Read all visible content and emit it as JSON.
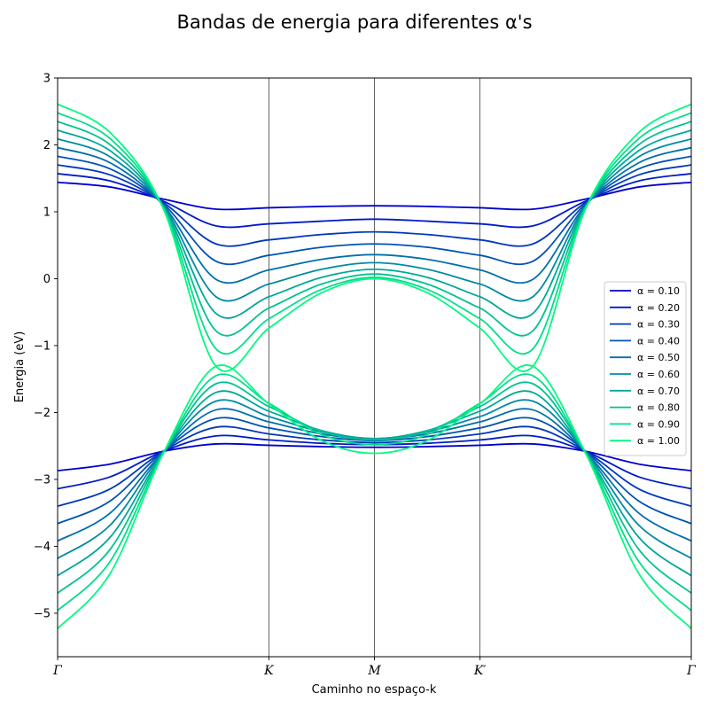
{
  "chart_data": {
    "type": "line",
    "title": "Bandas de energia para diferentes α's",
    "xlabel": "Caminho no espaço-k",
    "ylabel": "Energia (eV)",
    "ylim": [
      -5.65,
      3.0
    ],
    "yticks": [
      {
        "value": 3,
        "label": "3"
      },
      {
        "value": 2,
        "label": "2"
      },
      {
        "value": 1,
        "label": "1"
      },
      {
        "value": 0,
        "label": "0"
      },
      {
        "value": -1,
        "label": "−1"
      },
      {
        "value": -2,
        "label": "−2"
      },
      {
        "value": -3,
        "label": "−3"
      },
      {
        "value": -4,
        "label": "−4"
      },
      {
        "value": -5,
        "label": "−5"
      }
    ],
    "xticks": [
      "Γ",
      "K",
      "M",
      "K′",
      "Γ"
    ],
    "x": [
      0,
      0.5,
      1,
      1.5,
      2,
      2.5,
      3,
      3.5,
      4,
      4.5,
      5,
      5.5,
      6
    ],
    "vlines": true,
    "legend_position": "center-right",
    "color_start": "#0000cd",
    "color_end": "#00fa80",
    "series": [
      {
        "name": "α = 0.10",
        "upper": [
          1.44,
          1.37,
          1.19,
          1.04,
          1.06,
          1.08,
          1.09,
          1.08,
          1.06,
          1.04,
          1.19,
          1.37,
          1.44
        ],
        "lower": [
          -2.87,
          -2.77,
          -2.58,
          -2.47,
          -2.49,
          -2.51,
          -2.52,
          -2.51,
          -2.49,
          -2.47,
          -2.58,
          -2.77,
          -2.87
        ]
      },
      {
        "name": "α = 0.20",
        "upper": [
          1.57,
          1.46,
          1.16,
          0.79,
          0.82,
          0.86,
          0.89,
          0.86,
          0.82,
          0.79,
          1.16,
          1.46,
          1.57
        ],
        "lower": [
          -3.14,
          -2.96,
          -2.58,
          -2.35,
          -2.41,
          -2.46,
          -2.48,
          -2.46,
          -2.41,
          -2.35,
          -2.58,
          -2.96,
          -3.14
        ]
      },
      {
        "name": "α = 0.30",
        "upper": [
          1.7,
          1.55,
          1.14,
          0.52,
          0.58,
          0.66,
          0.7,
          0.66,
          0.58,
          0.52,
          1.14,
          1.55,
          1.7
        ],
        "lower": [
          -3.4,
          -3.14,
          -2.58,
          -2.22,
          -2.32,
          -2.41,
          -2.45,
          -2.41,
          -2.32,
          -2.22,
          -2.58,
          -3.14,
          -3.4
        ]
      },
      {
        "name": "α = 0.40",
        "upper": [
          1.83,
          1.64,
          1.12,
          0.26,
          0.35,
          0.47,
          0.52,
          0.47,
          0.35,
          0.26,
          1.12,
          1.64,
          1.83
        ],
        "lower": [
          -3.66,
          -3.32,
          -2.58,
          -2.09,
          -2.23,
          -2.36,
          -2.42,
          -2.36,
          -2.23,
          -2.09,
          -2.58,
          -3.32,
          -3.66
        ]
      },
      {
        "name": "α = 0.50",
        "upper": [
          1.96,
          1.73,
          1.1,
          -0.01,
          0.13,
          0.29,
          0.36,
          0.29,
          0.13,
          -0.01,
          1.1,
          1.73,
          1.96
        ],
        "lower": [
          -3.92,
          -3.5,
          -2.59,
          -1.96,
          -2.14,
          -2.32,
          -2.4,
          -2.32,
          -2.14,
          -1.96,
          -2.59,
          -3.5,
          -3.92
        ]
      },
      {
        "name": "α = 0.60",
        "upper": [
          2.09,
          1.82,
          1.09,
          -0.27,
          -0.08,
          0.14,
          0.24,
          0.14,
          -0.08,
          -0.27,
          1.09,
          1.82,
          2.09
        ],
        "lower": [
          -4.18,
          -3.68,
          -2.59,
          -1.83,
          -2.06,
          -2.29,
          -2.39,
          -2.29,
          -2.06,
          -1.83,
          -2.59,
          -3.68,
          -4.18
        ]
      },
      {
        "name": "α = 0.70",
        "upper": [
          2.22,
          1.91,
          1.08,
          -0.52,
          -0.27,
          0.02,
          0.14,
          0.02,
          -0.27,
          -0.52,
          1.08,
          1.91,
          2.22
        ],
        "lower": [
          -4.44,
          -3.86,
          -2.6,
          -1.7,
          -1.98,
          -2.27,
          -2.39,
          -2.27,
          -1.98,
          -1.7,
          -2.6,
          -3.86,
          -4.44
        ]
      },
      {
        "name": "α = 0.80",
        "upper": [
          2.35,
          2.0,
          1.07,
          -0.78,
          -0.44,
          -0.08,
          0.07,
          -0.08,
          -0.44,
          -0.78,
          1.07,
          2.0,
          2.35
        ],
        "lower": [
          -4.7,
          -4.04,
          -2.6,
          -1.57,
          -1.91,
          -2.28,
          -2.41,
          -2.28,
          -1.91,
          -1.57,
          -2.6,
          -4.04,
          -4.7
        ]
      },
      {
        "name": "α = 0.90",
        "upper": [
          2.48,
          2.09,
          1.06,
          -1.05,
          -0.6,
          -0.16,
          0.02,
          -0.16,
          -0.6,
          -1.05,
          1.06,
          2.09,
          2.48
        ],
        "lower": [
          -4.96,
          -4.22,
          -2.61,
          -1.45,
          -1.86,
          -2.33,
          -2.48,
          -2.33,
          -1.86,
          -1.45,
          -2.61,
          -4.22,
          -4.96
        ]
      },
      {
        "name": "α = 1.00",
        "upper": [
          2.61,
          2.18,
          1.05,
          -1.31,
          -0.74,
          -0.21,
          0.0,
          -0.21,
          -0.74,
          -1.31,
          1.05,
          2.18,
          2.61
        ],
        "lower": [
          -5.23,
          -4.4,
          -2.61,
          -1.31,
          -1.87,
          -2.42,
          -2.61,
          -2.42,
          -1.87,
          -1.31,
          -2.61,
          -4.4,
          -5.23
        ]
      }
    ]
  }
}
